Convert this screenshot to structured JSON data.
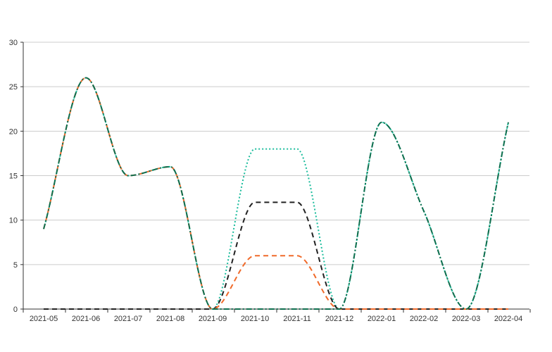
{
  "chart_data": {
    "type": "line",
    "categories": [
      "2021-05",
      "2021-06",
      "2021-07",
      "2021-08",
      "2021-09",
      "2021-10",
      "2021-11",
      "2021-12",
      "2022-01",
      "2022-02",
      "2022-03",
      "2022-04"
    ],
    "ylim": [
      0,
      30
    ],
    "yticks": [
      0,
      5,
      10,
      15,
      20,
      25,
      30
    ],
    "grid": true,
    "series": [
      {
        "values": [
          9,
          26,
          15,
          16,
          0,
          18,
          18,
          0,
          21,
          11,
          0,
          21
        ],
        "color": "#1abc9c",
        "dash": "dotted"
      },
      {
        "values": [
          0,
          0,
          0,
          0,
          0,
          12,
          12,
          0,
          0,
          0,
          0,
          0
        ],
        "color": "#222222",
        "dash": "dashed"
      },
      {
        "values": [
          9,
          26,
          15,
          16,
          0,
          6,
          6,
          0,
          0,
          0,
          0,
          0
        ],
        "color": "#f06a2a",
        "dash": "dashed"
      },
      {
        "values": [
          9,
          26,
          15,
          16,
          0,
          0,
          0,
          0,
          21,
          11,
          0,
          21
        ],
        "color": "#0f6e4e",
        "dash": "dashdot"
      }
    ]
  }
}
